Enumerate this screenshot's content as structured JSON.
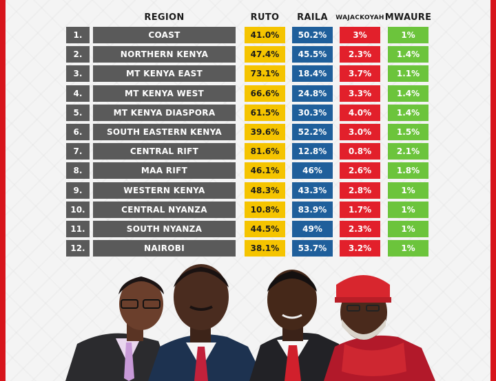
{
  "headers": {
    "region": "REGION",
    "ruto": "RUTO",
    "raila": "RAILA",
    "wajackoyah": "WAJACKOYAH",
    "mwaure": "MWAURE"
  },
  "rows": [
    {
      "num": "1.",
      "region": "COAST",
      "ruto": "41.0%",
      "raila": "50.2%",
      "wajackoyah": "3%",
      "mwaure": "1%"
    },
    {
      "num": "2.",
      "region": "NORTHERN KENYA",
      "ruto": "47.4%",
      "raila": "45.5%",
      "wajackoyah": "2.3%",
      "mwaure": "1.4%"
    },
    {
      "num": "3.",
      "region": "MT KENYA EAST",
      "ruto": "73.1%",
      "raila": "18.4%",
      "wajackoyah": "3.7%",
      "mwaure": "1.1%"
    },
    {
      "num": "4.",
      "region": "MT KENYA WEST",
      "ruto": "66.6%",
      "raila": "24.8%",
      "wajackoyah": "3.3%",
      "mwaure": "1.4%"
    },
    {
      "num": "5.",
      "region": "MT KENYA DIASPORA",
      "ruto": "61.5%",
      "raila": "30.3%",
      "wajackoyah": "4.0%",
      "mwaure": "1.4%"
    },
    {
      "num": "6.",
      "region": "SOUTH EASTERN KENYA",
      "ruto": "39.6%",
      "raila": "52.2%",
      "wajackoyah": "3.0%",
      "mwaure": "1.5%"
    },
    {
      "num": "7.",
      "region": "CENTRAL RIFT",
      "ruto": "81.6%",
      "raila": "12.8%",
      "wajackoyah": "0.8%",
      "mwaure": "2.1%"
    },
    {
      "num": "8.",
      "region": "MAA RIFT",
      "ruto": "46.1%",
      "raila": "46%",
      "wajackoyah": "2.6%",
      "mwaure": "1.8%"
    },
    {
      "num": "9.",
      "region": "WESTERN KENYA",
      "ruto": "48.3%",
      "raila": "43.3%",
      "wajackoyah": "2.8%",
      "mwaure": "1%"
    },
    {
      "num": "10.",
      "region": "CENTRAL NYANZA",
      "ruto": "10.8%",
      "raila": "83.9%",
      "wajackoyah": "1.7%",
      "mwaure": "1%"
    },
    {
      "num": "11.",
      "region": "SOUTH NYANZA",
      "ruto": "44.5%",
      "raila": "49%",
      "wajackoyah": "2.3%",
      "mwaure": "1%"
    },
    {
      "num": "12.",
      "region": "NAIROBI",
      "ruto": "38.1%",
      "raila": "53.7%",
      "wajackoyah": "3.2%",
      "mwaure": "1%"
    }
  ],
  "colors": {
    "frame": "#d7141b",
    "row_bg": "#5a5a5a",
    "ruto": "#f5c400",
    "raila": "#1f5f9b",
    "wajackoyah": "#e2202b",
    "mwaure": "#6cc43c"
  }
}
